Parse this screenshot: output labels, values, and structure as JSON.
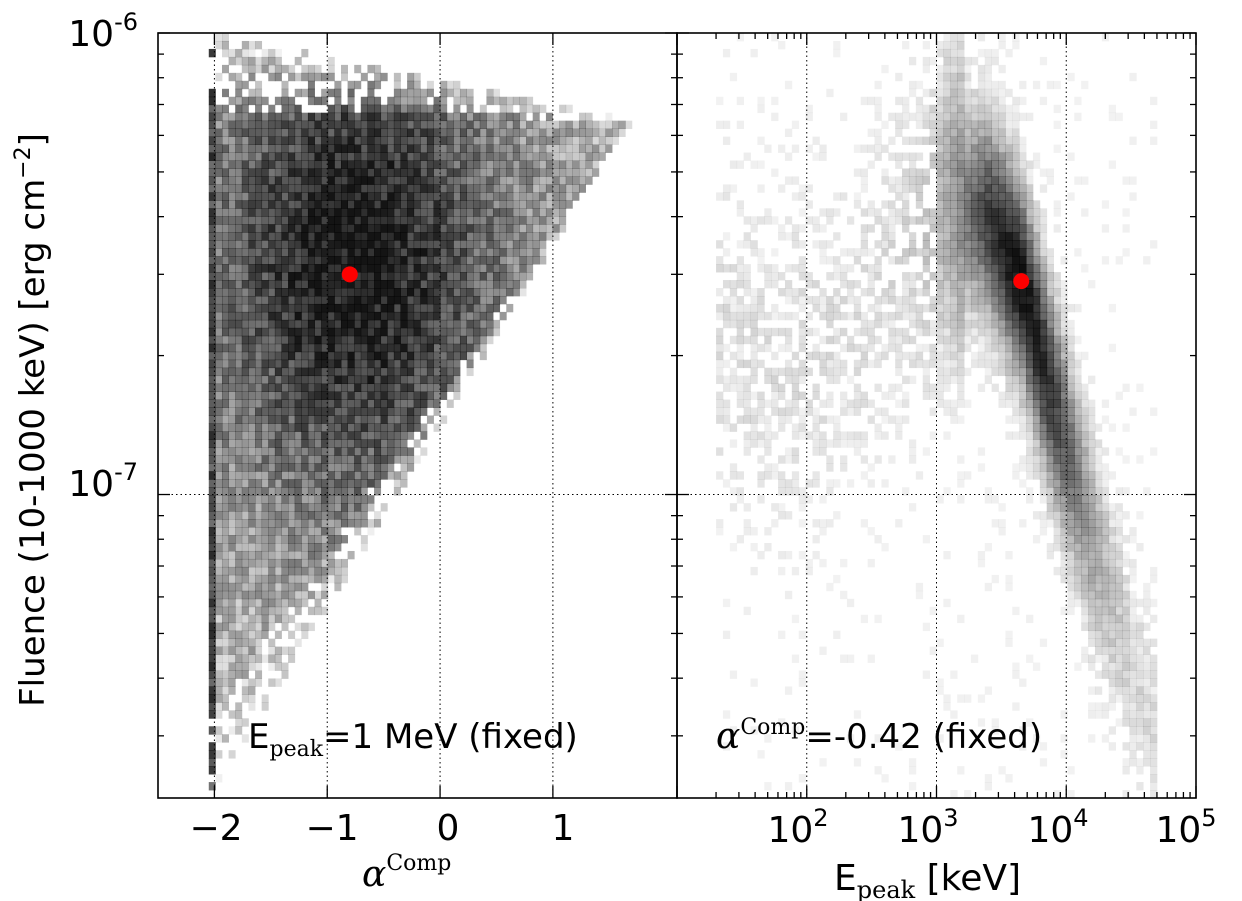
{
  "ylabel": {
    "main": "Fluence (10-1000 keV) [erg cm",
    "sup": "−2",
    "close": "]"
  },
  "y_ticks": [
    {
      "base": "10",
      "exp": "-6"
    },
    {
      "base": "10",
      "exp": "-7"
    }
  ],
  "left_panel": {
    "xlabel_symbol": "α",
    "xlabel_sup": "Comp",
    "x_ticks": [
      "−2",
      "−1",
      "0",
      "1"
    ],
    "annotation": {
      "lead": "E",
      "sub": "peak",
      "tail": "=1 MeV (fixed)"
    }
  },
  "right_panel": {
    "xlabel": {
      "lead": "E",
      "sub": "peak",
      "tail": " [keV]"
    },
    "x_ticks": [
      {
        "base": "10",
        "exp": "2"
      },
      {
        "base": "10",
        "exp": "3"
      },
      {
        "base": "10",
        "exp": "4"
      },
      {
        "base": "10",
        "exp": "5"
      }
    ],
    "annotation": {
      "symbol": "α",
      "sup": "Comp",
      "tail": "=-0.42 (fixed)"
    }
  },
  "colors": {
    "marker": "#ff0000",
    "density": "#000000",
    "grid": "#000000"
  },
  "chart_data": [
    {
      "type": "heatmap",
      "colormap": "gray_r",
      "xlabel": "α^Comp",
      "ylabel": "Fluence (10-1000 keV) [erg cm^-2]",
      "x_scale": "linear",
      "y_scale": "log",
      "xlim": [
        -2.5,
        2.1
      ],
      "ylim": [
        2.2e-08,
        1e-06
      ],
      "x_ticks": [
        -2,
        -1,
        0,
        1
      ],
      "y_ticks": [
        1e-07,
        1e-06
      ],
      "grid": true,
      "density_region": {
        "x_range": [
          -2.05,
          1.7
        ],
        "peak": {
          "x": -0.75,
          "y": 3.2e-07
        },
        "upper_edge": [
          [
            -2.05,
            1e-06
          ],
          [
            1.7,
            6.5e-07
          ]
        ],
        "lower_edge": [
          [
            -2.05,
            2.2e-08
          ],
          [
            1.7,
            6.5e-07
          ]
        ]
      },
      "marker": {
        "x": -0.8,
        "y": 3e-07,
        "color": "#ff0000"
      },
      "annotation": "E_peak=1 MeV (fixed)"
    },
    {
      "type": "heatmap",
      "colormap": "gray_r",
      "xlabel": "E_peak [keV]",
      "ylabel": "Fluence (10-1000 keV) [erg cm^-2]",
      "x_scale": "log",
      "y_scale": "log",
      "xlim": [
        10,
        100000
      ],
      "ylim": [
        2.2e-08,
        1e-06
      ],
      "x_ticks": [
        100,
        1000,
        10000,
        100000
      ],
      "y_ticks": [
        1e-07,
        1e-06
      ],
      "grid": true,
      "density_ridge": [
        [
          20,
          2.2e-07
        ],
        [
          60,
          1.9e-07
        ],
        [
          200,
          2.2e-07
        ],
        [
          600,
          3.4e-07
        ],
        [
          1200,
          4.4e-07
        ],
        [
          2500,
          4e-07
        ],
        [
          4500,
          2.9e-07
        ],
        [
          8000,
          1.6e-07
        ],
        [
          15000,
          8.5e-08
        ],
        [
          30000,
          4.6e-08
        ],
        [
          50000,
          3e-08
        ]
      ],
      "marker": {
        "x": 4500,
        "y": 2.9e-07,
        "color": "#ff0000"
      },
      "annotation": "α^Comp=-0.42 (fixed)"
    }
  ]
}
